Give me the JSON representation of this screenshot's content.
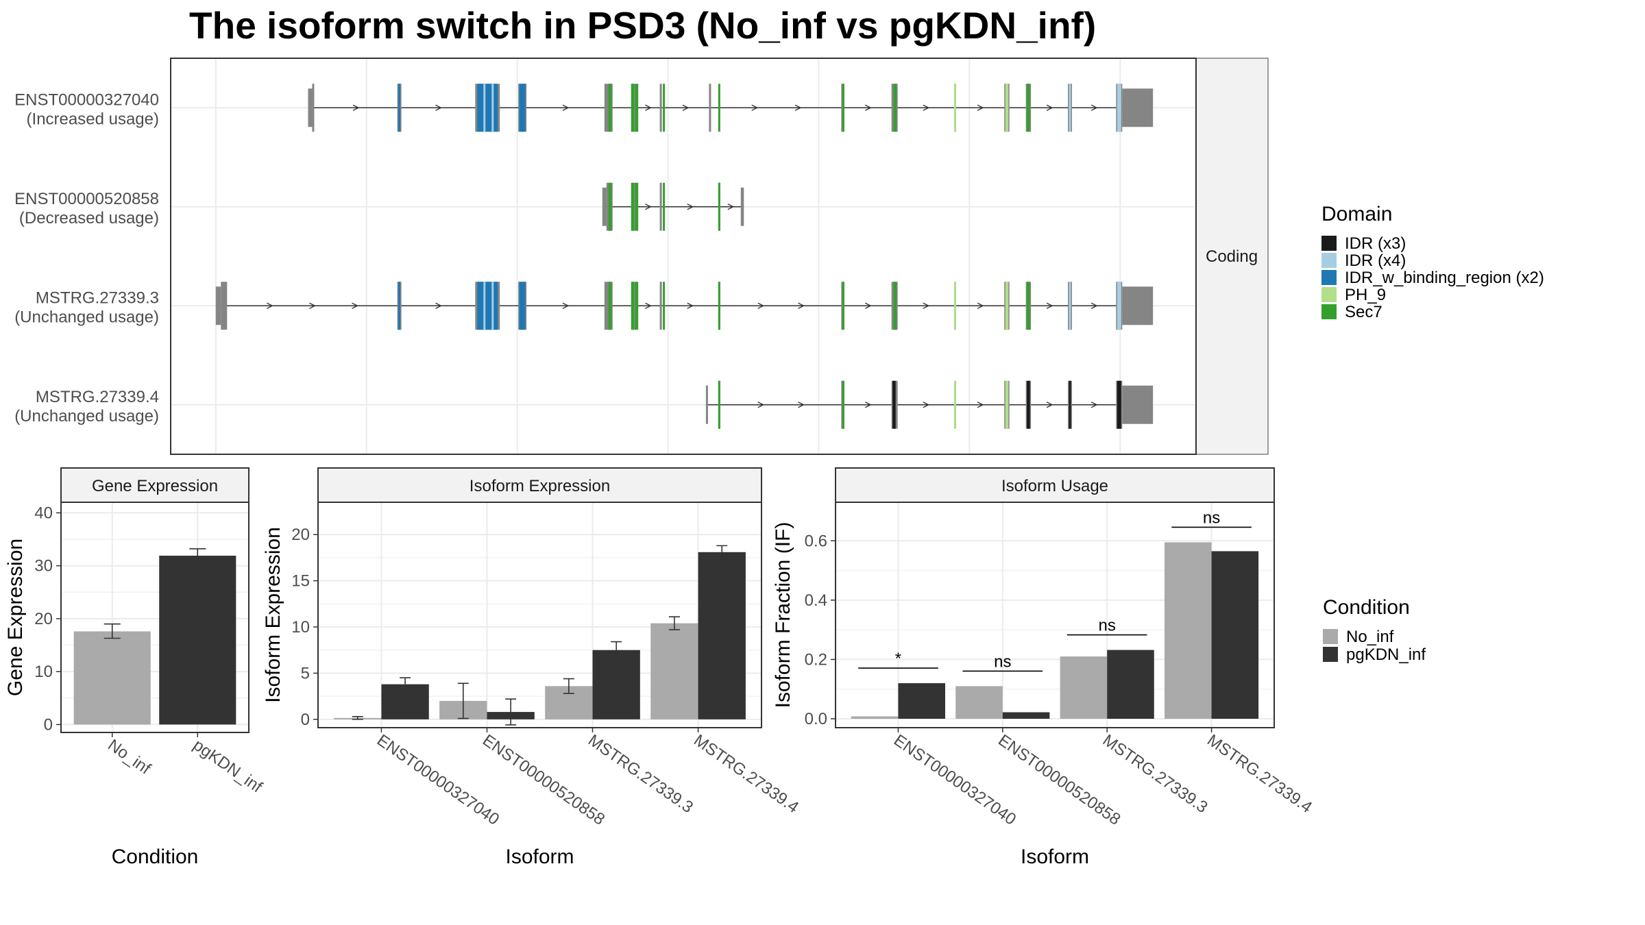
{
  "figure": {
    "title": "The isoform switch in PSD3 (No_inf vs pgKDN_inf)"
  },
  "colors": {
    "IDR (x3)": "#1a1a1a",
    "IDR (x4)": "#a6cee3",
    "IDR_w_binding_region (x2)": "#1f78b4",
    "PH_9": "#b2df8a",
    "Sec7": "#33a02c",
    "exon": "#858585",
    "No_inf": "#aaaaaa",
    "pgKDN_inf": "#333333"
  },
  "chart_data": [
    {
      "type": "gene-structure",
      "facet_label": "Coding",
      "isoforms": [
        {
          "name": "ENST00000327040",
          "usage": "(Increased usage)",
          "span": [
            0.138,
            0.953
          ],
          "exons": [
            [
              0.134,
              0.138,
              "utr"
            ],
            [
              0.138,
              0.14,
              "cds"
            ],
            [
              0.221,
              0.225,
              "cds"
            ],
            [
              0.297,
              0.321,
              "cds"
            ],
            [
              0.339,
              0.347,
              "cds"
            ],
            [
              0.423,
              0.431,
              "cds"
            ],
            [
              0.45,
              0.452,
              "cds"
            ],
            [
              0.452,
              0.454,
              "cds"
            ],
            [
              0.477,
              0.479,
              "cds"
            ],
            [
              0.525,
              0.527,
              "cds"
            ],
            [
              0.654,
              0.657,
              "cds"
            ],
            [
              0.703,
              0.709,
              "cds"
            ],
            [
              0.764,
              0.766,
              "cds"
            ],
            [
              0.813,
              0.818,
              "cds"
            ],
            [
              0.834,
              0.839,
              "cds"
            ],
            [
              0.875,
              0.879,
              "cds"
            ],
            [
              0.922,
              0.928,
              "cds"
            ],
            [
              0.928,
              0.958,
              "utr"
            ]
          ],
          "domains": [
            [
              0.222,
              0.224,
              "IDR_w_binding_region (x2)"
            ],
            [
              0.299,
              0.319,
              "IDR_w_binding_region (x2)"
            ],
            [
              0.305,
              0.307,
              "IDR (x4)"
            ],
            [
              0.313,
              0.315,
              "IDR (x4)"
            ],
            [
              0.34,
              0.346,
              "IDR_w_binding_region (x2)"
            ],
            [
              0.427,
              0.43,
              "Sec7"
            ],
            [
              0.449,
              0.452,
              "Sec7"
            ],
            [
              0.453,
              0.456,
              "Sec7"
            ],
            [
              0.48,
              0.482,
              "Sec7"
            ],
            [
              0.534,
              0.536,
              "Sec7"
            ],
            [
              0.655,
              0.657,
              "Sec7"
            ],
            [
              0.705,
              0.708,
              "Sec7"
            ],
            [
              0.764,
              0.766,
              "PH_9"
            ],
            [
              0.814,
              0.817,
              "PH_9"
            ],
            [
              0.835,
              0.838,
              "Sec7"
            ],
            [
              0.876,
              0.878,
              "IDR (x4)"
            ],
            [
              0.923,
              0.927,
              "IDR (x4)"
            ]
          ]
        },
        {
          "name": "ENST00000520858",
          "usage": "(Decreased usage)",
          "span": [
            0.423,
            0.559
          ],
          "exons": [
            [
              0.421,
              0.425,
              "utr"
            ],
            [
              0.425,
              0.431,
              "cds"
            ],
            [
              0.45,
              0.452,
              "cds"
            ],
            [
              0.452,
              0.454,
              "cds"
            ],
            [
              0.477,
              0.479,
              "cds"
            ],
            [
              0.534,
              0.536,
              "cds"
            ],
            [
              0.556,
              0.559,
              "utr"
            ]
          ],
          "domains": [
            [
              0.427,
              0.43,
              "Sec7"
            ],
            [
              0.449,
              0.452,
              "Sec7"
            ],
            [
              0.453,
              0.456,
              "Sec7"
            ],
            [
              0.48,
              0.482,
              "Sec7"
            ],
            [
              0.534,
              0.536,
              "Sec7"
            ]
          ]
        },
        {
          "name": "MSTRG.27339.3",
          "usage": "(Unchanged usage)",
          "span": [
            0.044,
            0.953
          ],
          "exons": [
            [
              0.044,
              0.049,
              "utr"
            ],
            [
              0.049,
              0.055,
              "cds"
            ],
            [
              0.221,
              0.225,
              "cds"
            ],
            [
              0.297,
              0.321,
              "cds"
            ],
            [
              0.339,
              0.347,
              "cds"
            ],
            [
              0.423,
              0.431,
              "cds"
            ],
            [
              0.45,
              0.452,
              "cds"
            ],
            [
              0.452,
              0.454,
              "cds"
            ],
            [
              0.477,
              0.479,
              "cds"
            ],
            [
              0.534,
              0.536,
              "cds"
            ],
            [
              0.654,
              0.657,
              "cds"
            ],
            [
              0.703,
              0.709,
              "cds"
            ],
            [
              0.764,
              0.766,
              "cds"
            ],
            [
              0.813,
              0.818,
              "cds"
            ],
            [
              0.834,
              0.839,
              "cds"
            ],
            [
              0.875,
              0.879,
              "cds"
            ],
            [
              0.922,
              0.928,
              "cds"
            ],
            [
              0.928,
              0.958,
              "utr"
            ]
          ],
          "domains": [
            [
              0.222,
              0.224,
              "IDR_w_binding_region (x2)"
            ],
            [
              0.299,
              0.319,
              "IDR_w_binding_region (x2)"
            ],
            [
              0.305,
              0.307,
              "IDR (x4)"
            ],
            [
              0.313,
              0.315,
              "IDR (x4)"
            ],
            [
              0.34,
              0.346,
              "IDR_w_binding_region (x2)"
            ],
            [
              0.427,
              0.43,
              "Sec7"
            ],
            [
              0.449,
              0.452,
              "Sec7"
            ],
            [
              0.453,
              0.456,
              "Sec7"
            ],
            [
              0.48,
              0.482,
              "Sec7"
            ],
            [
              0.534,
              0.536,
              "Sec7"
            ],
            [
              0.655,
              0.657,
              "Sec7"
            ],
            [
              0.705,
              0.708,
              "Sec7"
            ],
            [
              0.764,
              0.766,
              "PH_9"
            ],
            [
              0.814,
              0.817,
              "PH_9"
            ],
            [
              0.835,
              0.838,
              "Sec7"
            ],
            [
              0.876,
              0.878,
              "IDR (x4)"
            ],
            [
              0.923,
              0.927,
              "IDR (x4)"
            ]
          ]
        },
        {
          "name": "MSTRG.27339.4",
          "usage": "(Unchanged usage)",
          "span": [
            0.522,
            0.953
          ],
          "exons": [
            [
              0.522,
              0.523,
              "utr"
            ],
            [
              0.534,
              0.536,
              "cds"
            ],
            [
              0.654,
              0.657,
              "cds"
            ],
            [
              0.703,
              0.709,
              "cds"
            ],
            [
              0.764,
              0.766,
              "cds"
            ],
            [
              0.813,
              0.818,
              "cds"
            ],
            [
              0.834,
              0.839,
              "cds"
            ],
            [
              0.875,
              0.879,
              "cds"
            ],
            [
              0.922,
              0.928,
              "cds"
            ],
            [
              0.928,
              0.958,
              "utr"
            ]
          ],
          "domains": [
            [
              0.534,
              0.536,
              "Sec7"
            ],
            [
              0.655,
              0.657,
              "Sec7"
            ],
            [
              0.704,
              0.707,
              "IDR (x3)"
            ],
            [
              0.764,
              0.766,
              "PH_9"
            ],
            [
              0.814,
              0.817,
              "PH_9"
            ],
            [
              0.835,
              0.838,
              "IDR (x3)"
            ],
            [
              0.876,
              0.878,
              "IDR (x3)"
            ],
            [
              0.923,
              0.927,
              "IDR (x3)"
            ]
          ]
        }
      ],
      "legend": {
        "title": "Domain",
        "entries": [
          "IDR (x3)",
          "IDR (x4)",
          "IDR_w_binding_region (x2)",
          "PH_9",
          "Sec7"
        ]
      }
    },
    {
      "type": "bar",
      "facet_label": "Gene Expression",
      "xlabel": "Condition",
      "ylabel": "Gene Expression",
      "categories": [
        "No_inf",
        "pgKDN_inf"
      ],
      "values": [
        17.6,
        31.9
      ],
      "errors": [
        [
          16.3,
          19.0
        ],
        [
          30.6,
          33.2
        ]
      ],
      "ylim": [
        -1.5,
        42
      ],
      "yticks": [
        0,
        10,
        20,
        30,
        40
      ]
    },
    {
      "type": "bar",
      "facet_label": "Isoform Expression",
      "xlabel": "Isoform",
      "ylabel": "Isoform Expression",
      "categories": [
        "ENST00000327040",
        "ENST00000520858",
        "MSTRG.27339.3",
        "MSTRG.27339.4"
      ],
      "series": [
        {
          "name": "No_inf",
          "values": [
            0.15,
            2.0,
            3.6,
            10.4
          ],
          "errors": [
            [
              0.0,
              0.3
            ],
            [
              0.1,
              3.9
            ],
            [
              2.8,
              4.4
            ],
            [
              9.7,
              11.1
            ]
          ]
        },
        {
          "name": "pgKDN_inf",
          "values": [
            3.8,
            0.8,
            7.5,
            18.1
          ],
          "errors": [
            [
              3.1,
              4.5
            ],
            [
              -0.6,
              2.2
            ],
            [
              6.5,
              8.4
            ],
            [
              17.3,
              18.8
            ]
          ]
        }
      ],
      "ylim": [
        -0.9,
        23.5
      ],
      "yticks": [
        0,
        5,
        10,
        15,
        20
      ]
    },
    {
      "type": "bar",
      "facet_label": "Isoform Usage",
      "xlabel": "Isoform",
      "ylabel": "Isoform Fraction (IF)",
      "categories": [
        "ENST00000327040",
        "ENST00000520858",
        "MSTRG.27339.3",
        "MSTRG.27339.4"
      ],
      "series": [
        {
          "name": "No_inf",
          "values": [
            0.008,
            0.11,
            0.21,
            0.595
          ]
        },
        {
          "name": "pgKDN_inf",
          "values": [
            0.12,
            0.022,
            0.232,
            0.565
          ]
        }
      ],
      "annotations": [
        "*",
        "ns",
        "ns",
        "ns"
      ],
      "ylim": [
        -0.03,
        0.73
      ],
      "yticks": [
        0.0,
        0.2,
        0.4,
        0.6
      ],
      "ytick_labels": [
        "0.0",
        "0.2",
        "0.4",
        "0.6"
      ]
    }
  ],
  "condition_legend": {
    "title": "Condition",
    "entries": [
      "No_inf",
      "pgKDN_inf"
    ]
  }
}
